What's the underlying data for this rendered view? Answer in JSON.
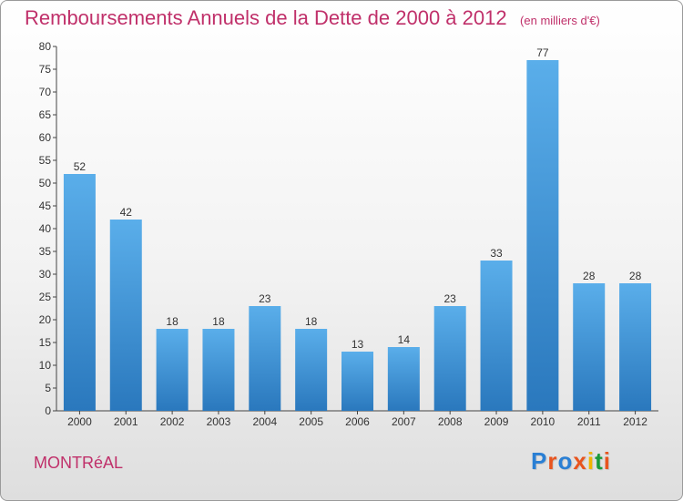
{
  "header": {
    "title": "Remboursements Annuels de la Dette de 2000 à 2012",
    "unit": "(en milliers d'€)"
  },
  "footer": {
    "place": "MONTRéAL",
    "logo_text": "Proxiti",
    "logo_colors": [
      "#2a7fd4",
      "#e8541e",
      "#2a7fd4",
      "#e8541e",
      "#f0b400",
      "#1a9a3a",
      "#e8541e"
    ]
  },
  "colors": {
    "bar_light": "#5aaeea",
    "bar_dark": "#2a78bd",
    "title": "#c0306a"
  },
  "chart_data": {
    "type": "bar",
    "categories": [
      "2000",
      "2001",
      "2002",
      "2003",
      "2004",
      "2005",
      "2006",
      "2007",
      "2008",
      "2009",
      "2010",
      "2011",
      "2012"
    ],
    "values": [
      52,
      42,
      18,
      18,
      23,
      18,
      13,
      14,
      23,
      33,
      77,
      28,
      28
    ],
    "ylim": [
      0,
      80
    ],
    "yticks": [
      0,
      5,
      10,
      15,
      20,
      25,
      30,
      35,
      40,
      45,
      50,
      55,
      60,
      65,
      70,
      75,
      80
    ],
    "grid": false,
    "legend": "none"
  }
}
